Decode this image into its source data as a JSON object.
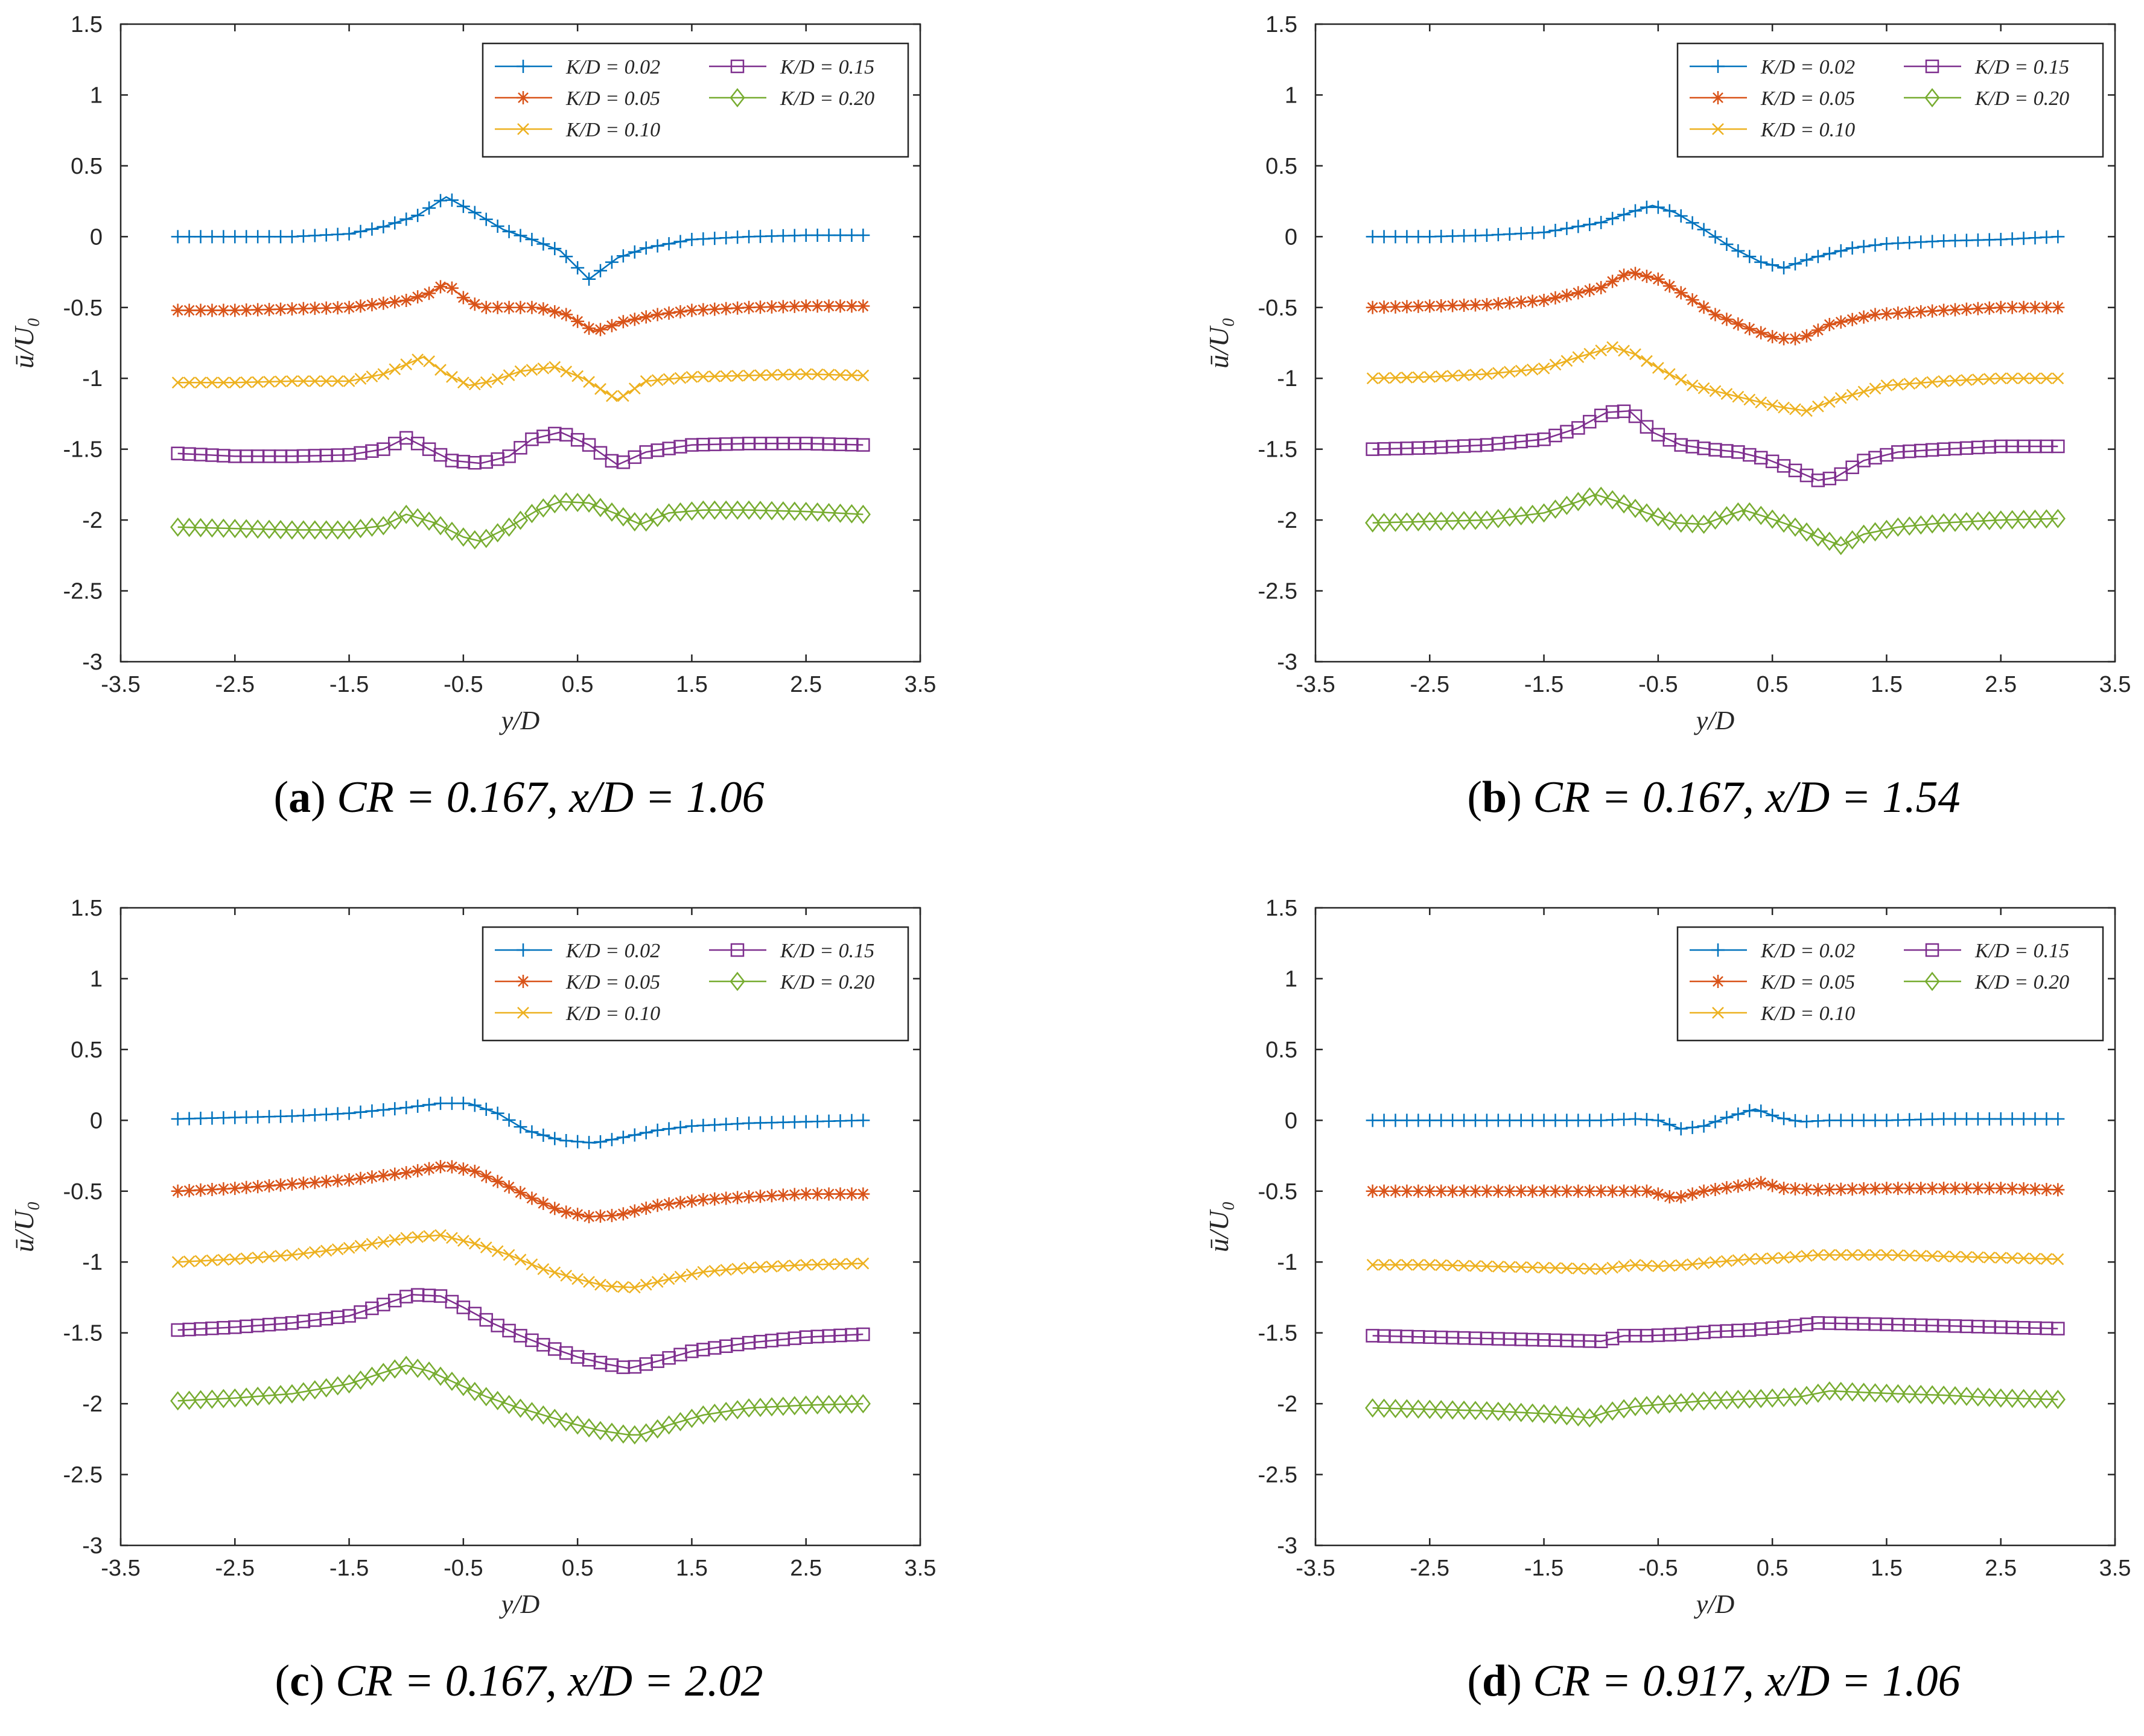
{
  "colors": {
    "s1": "#0072BD",
    "s2": "#D95319",
    "s3": "#EDB120",
    "s4": "#7E2F8E",
    "s5": "#77AC30"
  },
  "legend_labels": [
    "K/D = 0.02",
    "K/D = 0.05",
    "K/D = 0.10",
    "K/D = 0.15",
    "K/D = 0.20"
  ],
  "captions": [
    {
      "letter": "a",
      "text": "CR = 0.167, x/D = 1.06"
    },
    {
      "letter": "b",
      "text": "CR = 0.167, x/D = 1.54"
    },
    {
      "letter": "c",
      "text": "CR = 0.167, x/D = 2.02"
    },
    {
      "letter": "d",
      "text": "CR = 0.917, x/D = 1.06"
    }
  ],
  "chart_data": [
    {
      "type": "line",
      "title": "",
      "xlabel": "y/D",
      "ylabel": "ū/U₀",
      "xlim": [
        -3.5,
        3.5
      ],
      "ylim": [
        -3,
        1.5
      ],
      "xticks": [
        -3.5,
        -2.5,
        -1.5,
        -0.5,
        0.5,
        1.5,
        2.5,
        3.5
      ],
      "yticks": [
        -3,
        -2.5,
        -2,
        -1.5,
        -1,
        -0.5,
        0,
        0.5,
        1,
        1.5
      ],
      "legend": "top-right",
      "series": [
        {
          "name": "K/D = 0.02",
          "marker": "plus",
          "x": [
            -3,
            -2.5,
            -2,
            -1.5,
            -1.2,
            -0.9,
            -0.65,
            -0.4,
            -0.15,
            0.1,
            0.35,
            0.6,
            0.85,
            1.1,
            1.5,
            2,
            2.5,
            3
          ],
          "y": [
            0,
            0,
            0,
            0.02,
            0.07,
            0.15,
            0.28,
            0.17,
            0.05,
            -0.02,
            -0.1,
            -0.3,
            -0.15,
            -0.08,
            -0.02,
            0,
            0.01,
            0.01
          ]
        },
        {
          "name": "K/D = 0.05",
          "marker": "star",
          "x": [
            -3,
            -2.5,
            -2,
            -1.5,
            -1,
            -0.8,
            -0.65,
            -0.5,
            -0.35,
            -0.1,
            0.15,
            0.4,
            0.65,
            0.9,
            1.2,
            1.5,
            2,
            2.5,
            3
          ],
          "y": [
            -0.52,
            -0.52,
            -0.51,
            -0.5,
            -0.45,
            -0.4,
            -0.33,
            -0.43,
            -0.5,
            -0.5,
            -0.5,
            -0.55,
            -0.67,
            -0.6,
            -0.55,
            -0.52,
            -0.5,
            -0.49,
            -0.49
          ]
        },
        {
          "name": "K/D = 0.10",
          "marker": "x",
          "x": [
            -3,
            -2.5,
            -2,
            -1.5,
            -1.2,
            -0.85,
            -0.65,
            -0.45,
            -0.25,
            0,
            0.3,
            0.55,
            0.85,
            1.1,
            1.5,
            2,
            2.5,
            3
          ],
          "y": [
            -1.03,
            -1.03,
            -1.02,
            -1.02,
            -0.97,
            -0.85,
            -0.97,
            -1.05,
            -1.02,
            -0.95,
            -0.92,
            -1.0,
            -1.15,
            -1.02,
            -0.99,
            -0.98,
            -0.97,
            -0.98
          ]
        },
        {
          "name": "K/D = 0.15",
          "marker": "square",
          "x": [
            -3,
            -2.5,
            -2,
            -1.5,
            -1.2,
            -1,
            -0.8,
            -0.6,
            -0.35,
            -0.1,
            0.1,
            0.35,
            0.6,
            0.85,
            1.1,
            1.5,
            2,
            2.5,
            3
          ],
          "y": [
            -1.53,
            -1.55,
            -1.55,
            -1.54,
            -1.5,
            -1.42,
            -1.5,
            -1.58,
            -1.6,
            -1.55,
            -1.43,
            -1.38,
            -1.47,
            -1.61,
            -1.52,
            -1.47,
            -1.46,
            -1.46,
            -1.47
          ]
        },
        {
          "name": "K/D = 0.20",
          "marker": "diamond",
          "x": [
            -3,
            -2.5,
            -2,
            -1.5,
            -1.2,
            -1,
            -0.75,
            -0.5,
            -0.35,
            -0.1,
            0.15,
            0.35,
            0.6,
            0.85,
            1.05,
            1.3,
            1.6,
            2,
            2.5,
            3
          ],
          "y": [
            -2.05,
            -2.06,
            -2.07,
            -2.07,
            -2.04,
            -1.96,
            -2.02,
            -2.12,
            -2.15,
            -2.05,
            -1.93,
            -1.87,
            -1.88,
            -1.96,
            -2.03,
            -1.95,
            -1.93,
            -1.93,
            -1.94,
            -1.96
          ]
        }
      ]
    },
    {
      "type": "line",
      "title": "",
      "xlabel": "y/D",
      "ylabel": "ū/U₀",
      "xlim": [
        -3.5,
        3.5
      ],
      "ylim": [
        -3,
        1.5
      ],
      "xticks": [
        -3.5,
        -2.5,
        -1.5,
        -0.5,
        0.5,
        1.5,
        2.5,
        3.5
      ],
      "yticks": [
        -3,
        -2.5,
        -2,
        -1.5,
        -1,
        -0.5,
        0,
        0.5,
        1,
        1.5
      ],
      "legend": "top-right",
      "series": [
        {
          "name": "K/D = 0.02",
          "marker": "plus",
          "x": [
            -3,
            -2.5,
            -2,
            -1.5,
            -1,
            -0.75,
            -0.55,
            -0.35,
            -0.1,
            0.15,
            0.4,
            0.6,
            0.85,
            1.2,
            1.5,
            2,
            2.5,
            3
          ],
          "y": [
            0,
            0,
            0.01,
            0.03,
            0.1,
            0.17,
            0.22,
            0.17,
            0.05,
            -0.08,
            -0.18,
            -0.22,
            -0.15,
            -0.08,
            -0.05,
            -0.03,
            -0.02,
            0
          ]
        },
        {
          "name": "K/D = 0.05",
          "marker": "star",
          "x": [
            -3,
            -2.5,
            -2,
            -1.5,
            -1,
            -0.75,
            -0.5,
            -0.25,
            0,
            0.3,
            0.55,
            0.75,
            1,
            1.4,
            2,
            2.5,
            3
          ],
          "y": [
            -0.5,
            -0.49,
            -0.48,
            -0.45,
            -0.36,
            -0.25,
            -0.3,
            -0.42,
            -0.55,
            -0.65,
            -0.72,
            -0.72,
            -0.62,
            -0.55,
            -0.52,
            -0.5,
            -0.5
          ]
        },
        {
          "name": "K/D = 0.10",
          "marker": "x",
          "x": [
            -3,
            -2.5,
            -2,
            -1.5,
            -1.2,
            -0.9,
            -0.7,
            -0.45,
            -0.2,
            0.05,
            0.3,
            0.55,
            0.8,
            1.05,
            1.5,
            2,
            2.5,
            3
          ],
          "y": [
            -1.0,
            -0.99,
            -0.97,
            -0.93,
            -0.85,
            -0.78,
            -0.83,
            -0.95,
            -1.05,
            -1.1,
            -1.15,
            -1.2,
            -1.23,
            -1.15,
            -1.05,
            -1.02,
            -1.0,
            -1.0
          ]
        },
        {
          "name": "K/D = 0.15",
          "marker": "square",
          "x": [
            -3,
            -2.5,
            -2,
            -1.5,
            -1.2,
            -0.95,
            -0.75,
            -0.55,
            -0.3,
            -0.05,
            0.2,
            0.45,
            0.7,
            0.9,
            1.05,
            1.3,
            1.6,
            2,
            2.5,
            3
          ],
          "y": [
            -1.5,
            -1.49,
            -1.47,
            -1.43,
            -1.35,
            -1.24,
            -1.23,
            -1.38,
            -1.47,
            -1.5,
            -1.52,
            -1.57,
            -1.65,
            -1.72,
            -1.7,
            -1.58,
            -1.52,
            -1.5,
            -1.48,
            -1.48
          ]
        },
        {
          "name": "K/D = 0.20",
          "marker": "diamond",
          "x": [
            -3,
            -2.5,
            -2,
            -1.5,
            -1.2,
            -1.05,
            -0.85,
            -0.6,
            -0.35,
            -0.1,
            0.1,
            0.25,
            0.45,
            0.7,
            0.9,
            1.1,
            1.3,
            1.6,
            2,
            2.5,
            3
          ],
          "y": [
            -2.02,
            -2.01,
            -2.0,
            -1.95,
            -1.87,
            -1.82,
            -1.87,
            -1.95,
            -2.02,
            -2.03,
            -1.97,
            -1.93,
            -1.98,
            -2.05,
            -2.12,
            -2.18,
            -2.1,
            -2.05,
            -2.02,
            -2.0,
            -1.99
          ]
        }
      ]
    },
    {
      "type": "line",
      "title": "",
      "xlabel": "y/D",
      "ylabel": "ū/U₀",
      "xlim": [
        -3.5,
        3.5
      ],
      "ylim": [
        -3,
        1.5
      ],
      "xticks": [
        -3.5,
        -2.5,
        -1.5,
        -0.5,
        0.5,
        1.5,
        2.5,
        3.5
      ],
      "yticks": [
        -3,
        -2.5,
        -2,
        -1.5,
        -1,
        -0.5,
        0,
        0.5,
        1,
        1.5
      ],
      "legend": "top-right",
      "series": [
        {
          "name": "K/D = 0.02",
          "marker": "plus",
          "x": [
            -3,
            -2.5,
            -2,
            -1.5,
            -1,
            -0.7,
            -0.45,
            -0.2,
            0.05,
            0.35,
            0.65,
            0.9,
            1.2,
            1.5,
            2,
            2.5,
            3
          ],
          "y": [
            0.01,
            0.02,
            0.03,
            0.05,
            0.09,
            0.12,
            0.12,
            0.05,
            -0.07,
            -0.14,
            -0.16,
            -0.12,
            -0.07,
            -0.04,
            -0.02,
            -0.01,
            0
          ]
        },
        {
          "name": "K/D = 0.05",
          "marker": "star",
          "x": [
            -3,
            -2.5,
            -2,
            -1.5,
            -1,
            -0.65,
            -0.4,
            -0.15,
            0.1,
            0.35,
            0.6,
            0.85,
            1.2,
            1.6,
            2,
            2.5,
            3
          ],
          "y": [
            -0.5,
            -0.48,
            -0.45,
            -0.42,
            -0.37,
            -0.32,
            -0.36,
            -0.45,
            -0.55,
            -0.64,
            -0.68,
            -0.67,
            -0.6,
            -0.56,
            -0.54,
            -0.52,
            -0.52
          ]
        },
        {
          "name": "K/D = 0.10",
          "marker": "x",
          "x": [
            -3,
            -2.5,
            -2,
            -1.5,
            -1,
            -0.7,
            -0.4,
            -0.1,
            0.2,
            0.5,
            0.75,
            1.0,
            1.3,
            1.6,
            2,
            2.5,
            3
          ],
          "y": [
            -1.0,
            -0.98,
            -0.95,
            -0.9,
            -0.83,
            -0.81,
            -0.87,
            -0.95,
            -1.05,
            -1.12,
            -1.17,
            -1.18,
            -1.12,
            -1.07,
            -1.04,
            -1.02,
            -1.01
          ]
        },
        {
          "name": "K/D = 0.15",
          "marker": "square",
          "x": [
            -3,
            -2.5,
            -2,
            -1.5,
            -1.2,
            -0.95,
            -0.7,
            -0.5,
            -0.25,
            0,
            0.25,
            0.5,
            0.75,
            0.95,
            1.2,
            1.5,
            2,
            2.5,
            3
          ],
          "y": [
            -1.48,
            -1.46,
            -1.43,
            -1.38,
            -1.3,
            -1.23,
            -1.24,
            -1.32,
            -1.43,
            -1.52,
            -1.6,
            -1.67,
            -1.72,
            -1.75,
            -1.7,
            -1.63,
            -1.57,
            -1.53,
            -1.51
          ]
        },
        {
          "name": "K/D = 0.20",
          "marker": "diamond",
          "x": [
            -3,
            -2.5,
            -2,
            -1.5,
            -1.2,
            -1.0,
            -0.8,
            -0.55,
            -0.3,
            -0.05,
            0.2,
            0.45,
            0.7,
            0.95,
            1.05,
            1.3,
            1.6,
            2,
            2.5,
            3
          ],
          "y": [
            -1.98,
            -1.96,
            -1.93,
            -1.86,
            -1.78,
            -1.73,
            -1.77,
            -1.86,
            -1.95,
            -2.02,
            -2.08,
            -2.14,
            -2.19,
            -2.22,
            -2.22,
            -2.15,
            -2.08,
            -2.03,
            -2.01,
            -2.0
          ]
        }
      ]
    },
    {
      "type": "line",
      "title": "",
      "xlabel": "y/D",
      "ylabel": "ū/U₀",
      "xlim": [
        -3.5,
        3.5
      ],
      "ylim": [
        -3,
        1.5
      ],
      "xticks": [
        -3.5,
        -2.5,
        -1.5,
        -0.5,
        0.5,
        1.5,
        2.5,
        3.5
      ],
      "yticks": [
        -3,
        -2.5,
        -2,
        -1.5,
        -1,
        -0.5,
        0,
        0.5,
        1,
        1.5
      ],
      "legend": "top-right",
      "series": [
        {
          "name": "K/D = 0.02",
          "marker": "plus",
          "x": [
            -3,
            -2.5,
            -2,
            -1.5,
            -1,
            -0.7,
            -0.5,
            -0.3,
            -0.1,
            0.1,
            0.35,
            0.55,
            0.75,
            1.0,
            1.5,
            2,
            2.5,
            3
          ],
          "y": [
            0,
            0,
            0,
            0,
            0,
            0.01,
            0,
            -0.06,
            -0.04,
            0.02,
            0.08,
            0.02,
            -0.01,
            0,
            0,
            0.01,
            0.01,
            0.01
          ]
        },
        {
          "name": "K/D = 0.05",
          "marker": "star",
          "x": [
            -3,
            -2.5,
            -2,
            -1.5,
            -1,
            -0.6,
            -0.35,
            -0.1,
            0.15,
            0.4,
            0.6,
            0.9,
            1.5,
            2,
            2.5,
            3
          ],
          "y": [
            -0.5,
            -0.5,
            -0.5,
            -0.5,
            -0.5,
            -0.5,
            -0.55,
            -0.5,
            -0.47,
            -0.44,
            -0.48,
            -0.49,
            -0.48,
            -0.48,
            -0.48,
            -0.49
          ]
        },
        {
          "name": "K/D = 0.10",
          "marker": "x",
          "x": [
            -3,
            -2.5,
            -2,
            -1.5,
            -1,
            -0.7,
            -0.5,
            -0.25,
            0,
            0.3,
            0.6,
            0.9,
            1.5,
            2,
            2.5,
            3
          ],
          "y": [
            -1.02,
            -1.02,
            -1.03,
            -1.04,
            -1.05,
            -1.02,
            -1.03,
            -1.02,
            -1.0,
            -0.98,
            -0.97,
            -0.95,
            -0.95,
            -0.96,
            -0.97,
            -0.98
          ]
        },
        {
          "name": "K/D = 0.15",
          "marker": "square",
          "x": [
            -3,
            -2.5,
            -2,
            -1.5,
            -1.0,
            -0.8,
            -0.6,
            -0.3,
            0,
            0.3,
            0.6,
            0.9,
            1.5,
            2,
            2.5,
            3
          ],
          "y": [
            -1.52,
            -1.53,
            -1.54,
            -1.55,
            -1.56,
            -1.52,
            -1.52,
            -1.51,
            -1.49,
            -1.48,
            -1.46,
            -1.43,
            -1.44,
            -1.45,
            -1.46,
            -1.47
          ]
        },
        {
          "name": "K/D = 0.20",
          "marker": "diamond",
          "x": [
            -3,
            -2.5,
            -2,
            -1.5,
            -1.1,
            -0.95,
            -0.7,
            -0.4,
            -0.1,
            0.2,
            0.5,
            0.75,
            1.0,
            1.3,
            1.6,
            2,
            2.5,
            3
          ],
          "y": [
            -2.03,
            -2.04,
            -2.05,
            -2.07,
            -2.1,
            -2.06,
            -2.02,
            -2.0,
            -1.98,
            -1.97,
            -1.96,
            -1.95,
            -1.91,
            -1.92,
            -1.93,
            -1.94,
            -1.96,
            -1.97
          ]
        }
      ]
    }
  ]
}
